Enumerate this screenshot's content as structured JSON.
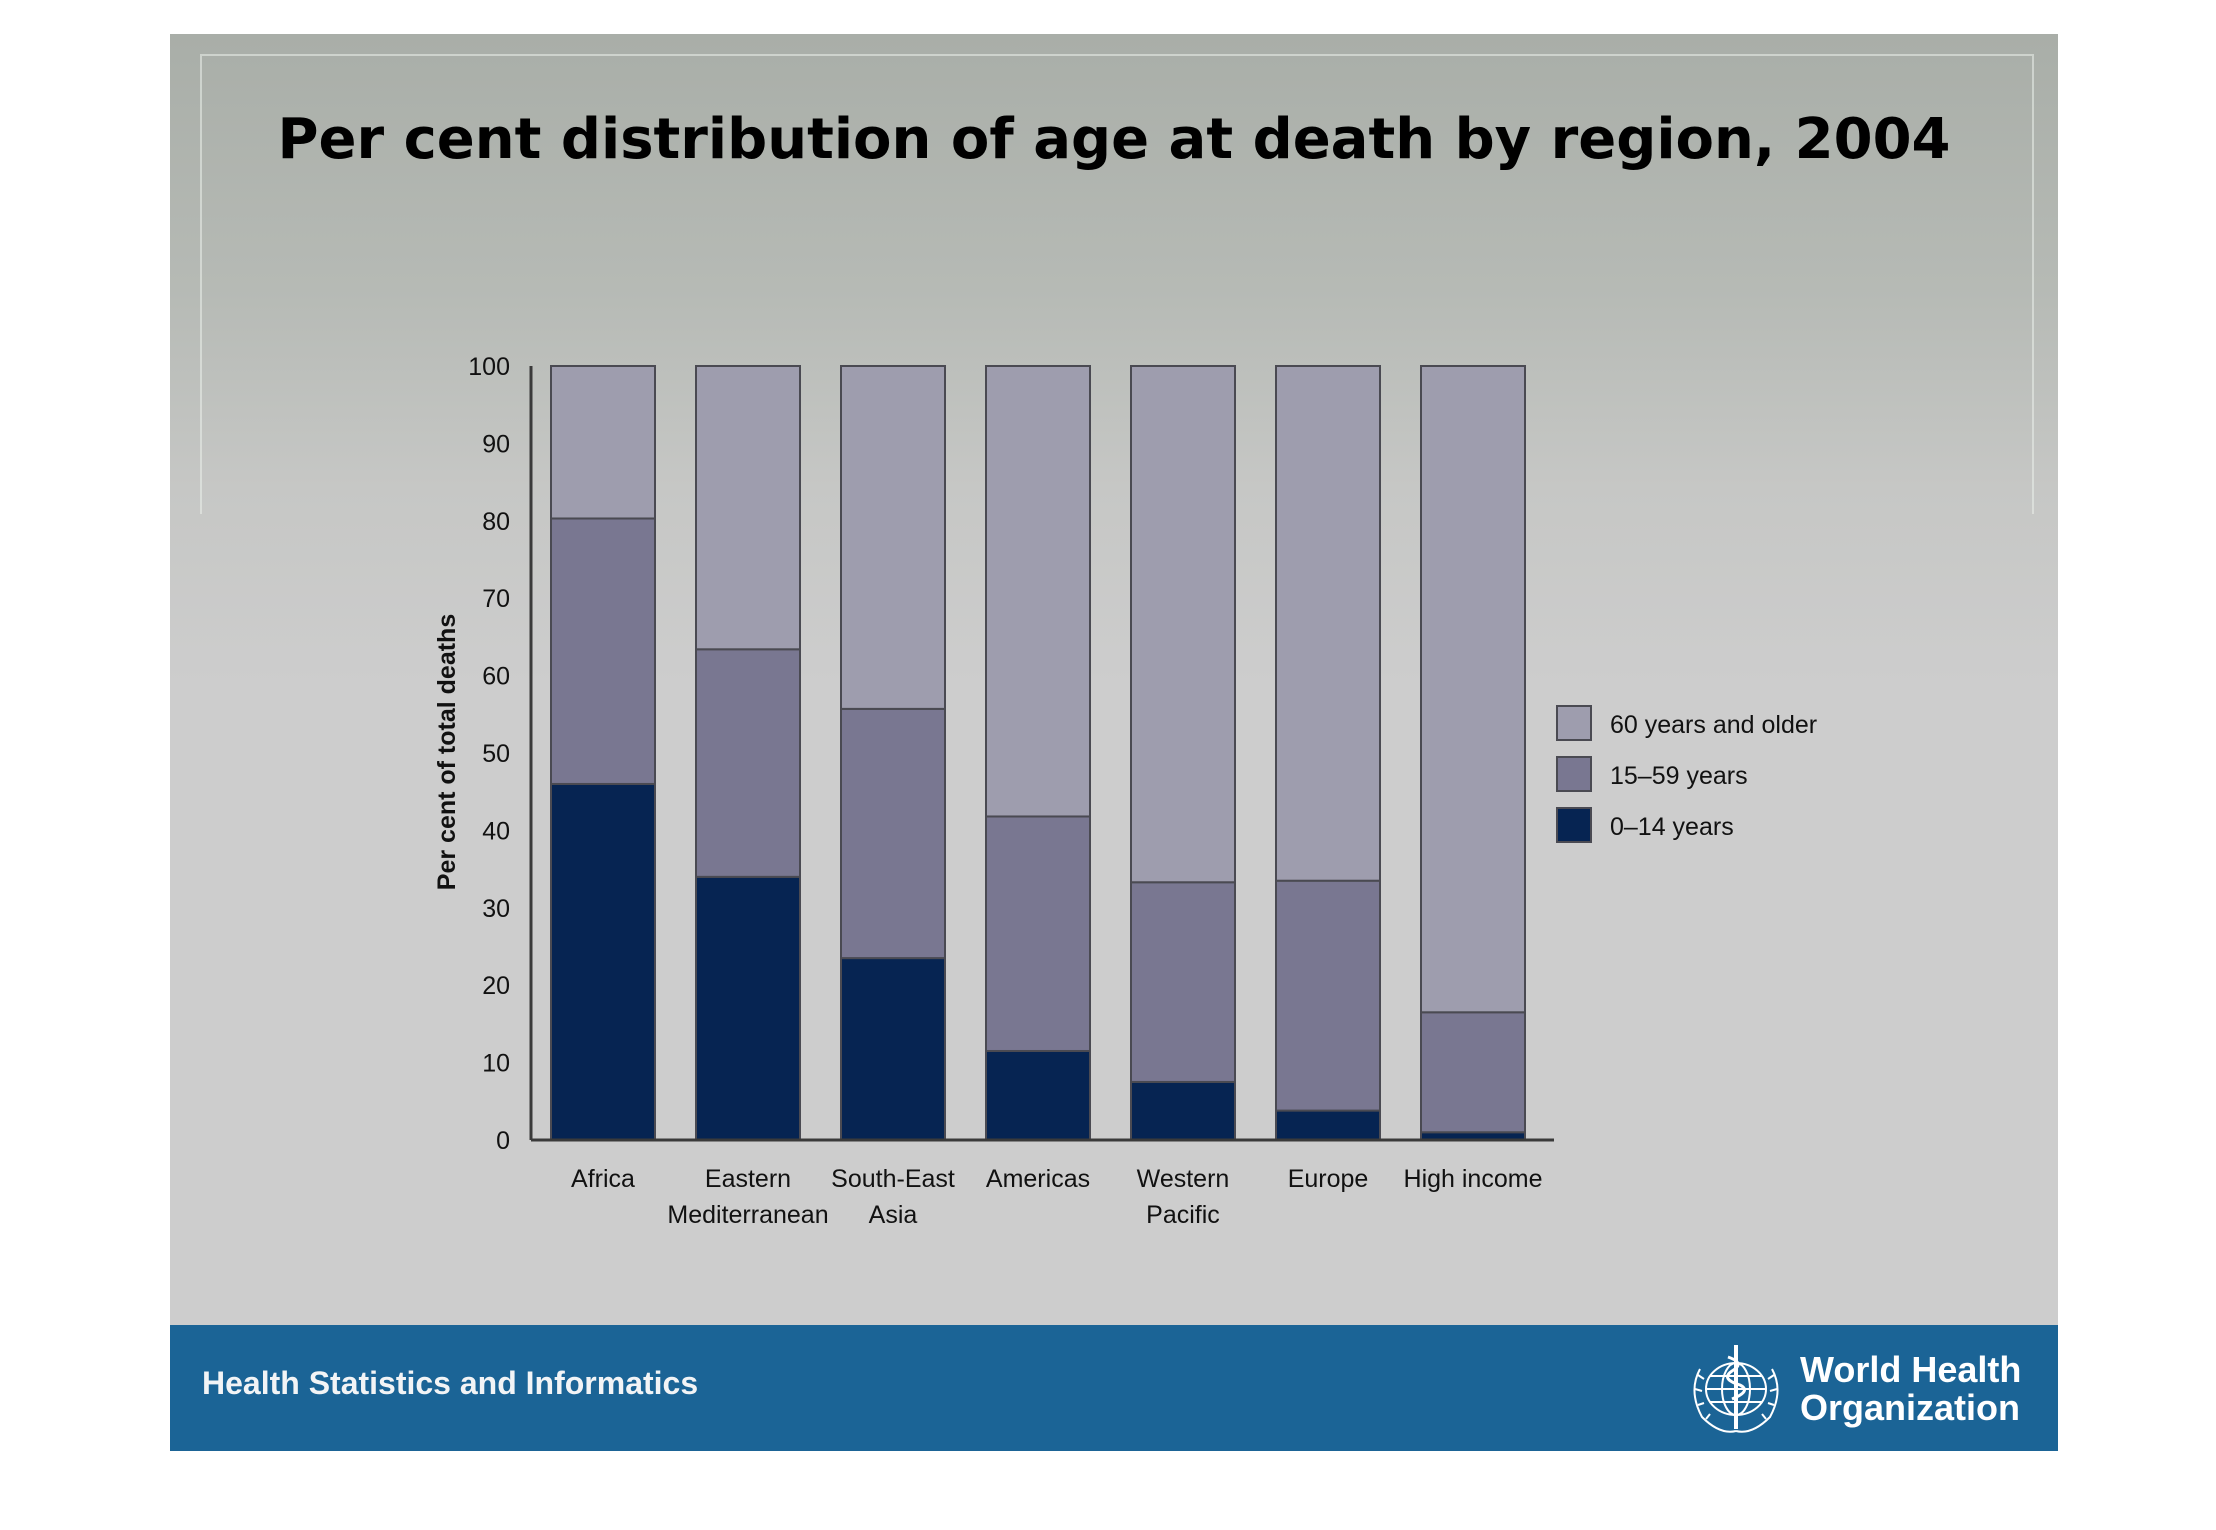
{
  "colors": {
    "slide_bg": "#cdcdcd",
    "footer_bg": "#1b6496",
    "series_60_plus": "#9e9dae",
    "series_15_59": "#797791",
    "series_0_14": "#062452",
    "axis": "#3a3a3a"
  },
  "footer": {
    "text": "Health Statistics and Informatics",
    "logo_lines": [
      "World Health",
      "Organization"
    ],
    "logo_icon": "who-emblem-icon"
  },
  "chart_data": {
    "type": "bar",
    "stacked": true,
    "title": "Per cent distribution of age at death by region, 2004",
    "xlabel": "",
    "ylabel": "Per cent of total deaths",
    "ylim": [
      0,
      100
    ],
    "yticks": [
      0,
      10,
      20,
      30,
      40,
      50,
      60,
      70,
      80,
      90,
      100
    ],
    "grid": false,
    "legend_position": "right",
    "categories": [
      [
        "Africa"
      ],
      [
        "Eastern",
        "Mediterranean"
      ],
      [
        "South-East",
        "Asia"
      ],
      [
        "Americas"
      ],
      [
        "Western",
        "Pacific"
      ],
      [
        "Europe"
      ],
      [
        "High income"
      ]
    ],
    "series": [
      {
        "name": "0–14 years",
        "color": "#062452",
        "values": [
          46,
          34,
          23.5,
          11.5,
          7.5,
          3.8,
          1
        ]
      },
      {
        "name": "15–59 years",
        "color": "#797791",
        "values": [
          34.3,
          29.4,
          32.2,
          30.3,
          25.8,
          29.7,
          15.5
        ]
      },
      {
        "name": "60 years and older",
        "color": "#9e9dae",
        "values": [
          19.7,
          36.6,
          44.3,
          58.2,
          66.7,
          66.5,
          83.5
        ]
      }
    ],
    "legend_order": [
      "60 years and older",
      "15–59 years",
      "0–14 years"
    ]
  }
}
